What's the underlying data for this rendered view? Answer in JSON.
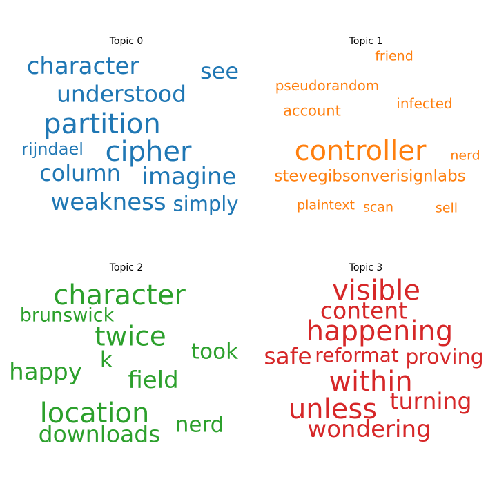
{
  "panels": [
    {
      "title": "Topic 0",
      "color": "#1f77b4",
      "words": [
        "character",
        "see",
        "understood",
        "partition",
        "rijndael",
        "cipher",
        "column",
        "imagine",
        "weakness",
        "simply"
      ]
    },
    {
      "title": "Topic 1",
      "color": "#ff7f0e",
      "words": [
        "friend",
        "pseudorandom",
        "infected",
        "account",
        "controller",
        "nerd",
        "stevegibsonverisignlabs",
        "plaintext",
        "scan",
        "sell"
      ]
    },
    {
      "title": "Topic 2",
      "color": "#2ca02c",
      "words": [
        "character",
        "brunswick",
        "twice",
        "took",
        "k",
        "happy",
        "field",
        "location",
        "nerd",
        "downloads"
      ]
    },
    {
      "title": "Topic 3",
      "color": "#d62728",
      "words": [
        "visible",
        "content",
        "happening",
        "safe",
        "reformat",
        "proving",
        "within",
        "turning",
        "unless",
        "wondering"
      ]
    }
  ]
}
